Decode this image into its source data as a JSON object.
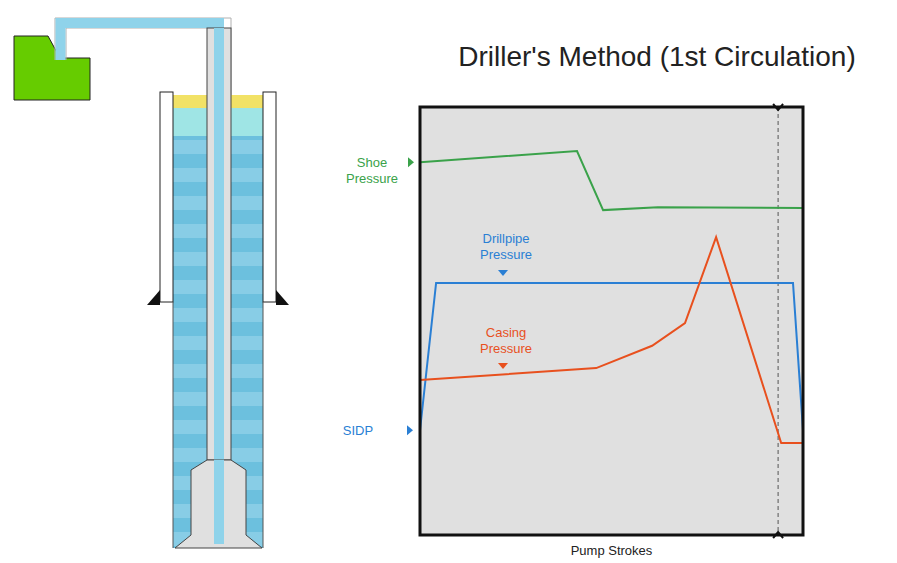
{
  "chart_data": {
    "type": "line",
    "title": "Driller's Method (1st Circulation)",
    "x_label": "Pump Strokes",
    "xlim": [
      0,
      100
    ],
    "ylim": [
      0,
      100
    ],
    "tick_labels": false,
    "grid": false,
    "reference_line": 93.5,
    "annotations": [
      {
        "text": "SIDP"
      }
    ],
    "series": [
      {
        "name": "Shoe Pressure",
        "color": "#3aa24a",
        "x": [
          0,
          41,
          47.8,
          62.1,
          100
        ],
        "values": [
          87.1,
          89.7,
          75.9,
          76.6,
          76.4
        ]
      },
      {
        "name": "Drillpipe Pressure",
        "color": "#2a7fd4",
        "x": [
          0,
          4.2,
          97.4,
          100
        ],
        "values": [
          24.5,
          58.9,
          58.9,
          24.5
        ]
      },
      {
        "name": "Casing Pressure",
        "color": "#e8501e",
        "x": [
          0,
          46,
          60.6,
          69.2,
          77.3,
          94.3,
          100
        ],
        "values": [
          36.2,
          39,
          44.2,
          49.5,
          69.6,
          21.5,
          21.5
        ]
      }
    ]
  }
}
